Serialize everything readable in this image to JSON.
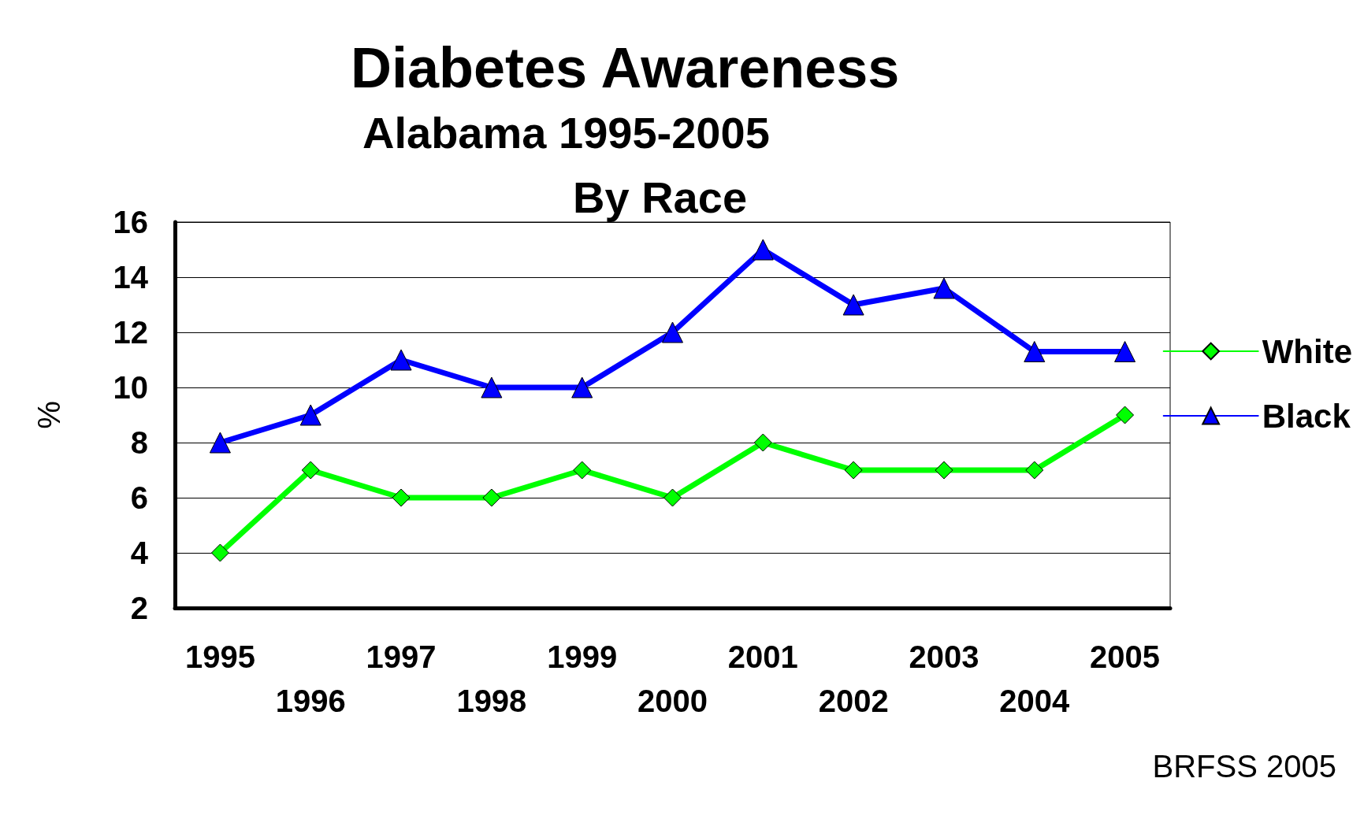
{
  "chart_data": {
    "type": "line",
    "title": "Diabetes Awareness",
    "subtitle": "Alabama 1995-2005\nBy Race",
    "ylabel": "%",
    "categories": [
      "1995",
      "1996",
      "1997",
      "1998",
      "1999",
      "2000",
      "2001",
      "2002",
      "2003",
      "2004",
      "2005"
    ],
    "series": [
      {
        "name": "White",
        "color": "#00ff00",
        "marker": "diamond",
        "values": [
          4,
          7,
          6,
          6,
          7,
          6,
          8,
          7,
          7,
          7,
          9
        ]
      },
      {
        "name": "Black",
        "color": "#0000ff",
        "marker": "triangle",
        "values": [
          8,
          9,
          11,
          10,
          10,
          12,
          15,
          13,
          13.6,
          11.3,
          11.3
        ]
      }
    ],
    "ylim": [
      2,
      16
    ],
    "yticks": [
      2,
      4,
      6,
      8,
      10,
      12,
      14,
      16
    ],
    "grid": "y",
    "legend": "right",
    "line_style": "solid",
    "annotations": [
      "BRFSS 2005"
    ]
  }
}
